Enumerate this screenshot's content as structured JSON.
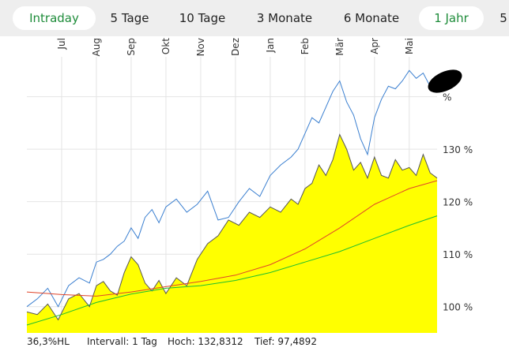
{
  "tabs": [
    {
      "label": "Intraday",
      "active": true
    },
    {
      "label": "5 Tage",
      "active": false
    },
    {
      "label": "10 Tage",
      "active": false
    },
    {
      "label": "3 Monate",
      "active": false
    },
    {
      "label": "6 Monate",
      "active": false
    },
    {
      "label": "1 Jahr",
      "active": true
    },
    {
      "label": "5",
      "active": false
    }
  ],
  "footer": {
    "range": "36,3%HL",
    "interval": "Intervall: 1 Tag",
    "high": "Hoch: 132,8312",
    "low": "Tief: 97,4892"
  },
  "chart_data": {
    "type": "area",
    "x_months": [
      "Jul",
      "Aug",
      "Sep",
      "Okt",
      "Nov",
      "Dez",
      "Jan",
      "Feb",
      "Mär",
      "Apr",
      "Mai"
    ],
    "y_ticks": [
      {
        "value": 100,
        "label": "100 %"
      },
      {
        "value": 110,
        "label": "110 %"
      },
      {
        "value": 120,
        "label": "120 %"
      },
      {
        "value": 130,
        "label": "130 %"
      },
      {
        "value": 140,
        "label": "%"
      }
    ],
    "ylim": [
      95,
      147
    ],
    "x_range": [
      0,
      11.8
    ],
    "grid": true,
    "colors": {
      "area_fill": "#ffff00",
      "area_line": "#555555",
      "benchmark": "#3a7fd0",
      "ma_short": "#e0452a",
      "ma_long": "#1fbf2f"
    },
    "series": [
      {
        "kind": "area",
        "x": [
          0,
          0.3,
          0.6,
          0.9,
          1.2,
          1.5,
          1.8,
          2.0,
          2.2,
          2.4,
          2.6,
          2.8,
          3.0,
          3.2,
          3.4,
          3.6,
          3.8,
          4.0,
          4.3,
          4.6,
          4.9,
          5.2,
          5.5,
          5.8,
          6.1,
          6.4,
          6.7,
          7.0,
          7.3,
          7.6,
          7.8,
          8.0,
          8.2,
          8.4,
          8.6,
          8.8,
          9.0,
          9.2,
          9.4,
          9.6,
          9.8,
          10.0,
          10.2,
          10.4,
          10.6,
          10.8,
          11.0,
          11.2,
          11.4,
          11.6,
          11.8
        ],
        "values": [
          99.0,
          98.5,
          100.5,
          97.5,
          101.5,
          102.5,
          100.0,
          104.0,
          104.8,
          103.0,
          102.2,
          106.5,
          109.5,
          108.0,
          104.5,
          103.0,
          105.0,
          102.5,
          105.5,
          104.0,
          109.0,
          112.0,
          113.5,
          116.5,
          115.5,
          118.0,
          117.0,
          119.0,
          118.0,
          120.5,
          119.5,
          122.5,
          123.5,
          127.0,
          125.0,
          128.0,
          132.8,
          130.0,
          126.0,
          127.5,
          124.5,
          128.5,
          125.0,
          124.5,
          128.0,
          126.0,
          126.5,
          125.0,
          129.0,
          125.5,
          124.5
        ]
      },
      {
        "kind": "line",
        "x": [
          0,
          0.3,
          0.6,
          0.9,
          1.2,
          1.5,
          1.8,
          2.0,
          2.2,
          2.4,
          2.6,
          2.8,
          3.0,
          3.2,
          3.4,
          3.6,
          3.8,
          4.0,
          4.3,
          4.6,
          4.9,
          5.2,
          5.5,
          5.8,
          6.1,
          6.4,
          6.7,
          7.0,
          7.3,
          7.6,
          7.8,
          8.0,
          8.2,
          8.4,
          8.6,
          8.8,
          9.0,
          9.2,
          9.4,
          9.6,
          9.8,
          10.0,
          10.2,
          10.4,
          10.6,
          10.8,
          11.0,
          11.2,
          11.4,
          11.6,
          11.8
        ],
        "values": [
          100.0,
          101.5,
          103.5,
          100.0,
          104.0,
          105.5,
          104.5,
          108.5,
          109.0,
          110.0,
          111.5,
          112.5,
          115.0,
          113.0,
          117.0,
          118.5,
          116.0,
          119.0,
          120.5,
          118.0,
          119.5,
          122.0,
          116.5,
          117.0,
          120.0,
          122.5,
          121.0,
          125.0,
          127.0,
          128.5,
          130.0,
          133.0,
          136.0,
          135.0,
          138.0,
          141.0,
          143.0,
          139.0,
          136.5,
          132.0,
          129.0,
          136.0,
          139.5,
          142.0,
          141.5,
          143.0,
          145.0,
          143.5,
          144.5,
          142.0,
          141.0
        ]
      },
      {
        "kind": "line",
        "x": [
          0,
          1,
          2,
          3,
          4,
          5,
          6,
          7,
          8,
          9,
          10,
          11,
          11.8
        ],
        "values": [
          102.8,
          102.3,
          102.0,
          102.8,
          103.8,
          104.8,
          106.0,
          108.0,
          111.0,
          115.0,
          119.5,
          122.5,
          124.0
        ]
      },
      {
        "kind": "line",
        "x": [
          0,
          1,
          2,
          3,
          4,
          5,
          6,
          7,
          8,
          9,
          10,
          11,
          11.8
        ],
        "values": [
          96.5,
          98.5,
          100.8,
          102.4,
          103.5,
          104.0,
          105.0,
          106.5,
          108.5,
          110.5,
          113.0,
          115.5,
          117.3
        ]
      }
    ]
  }
}
